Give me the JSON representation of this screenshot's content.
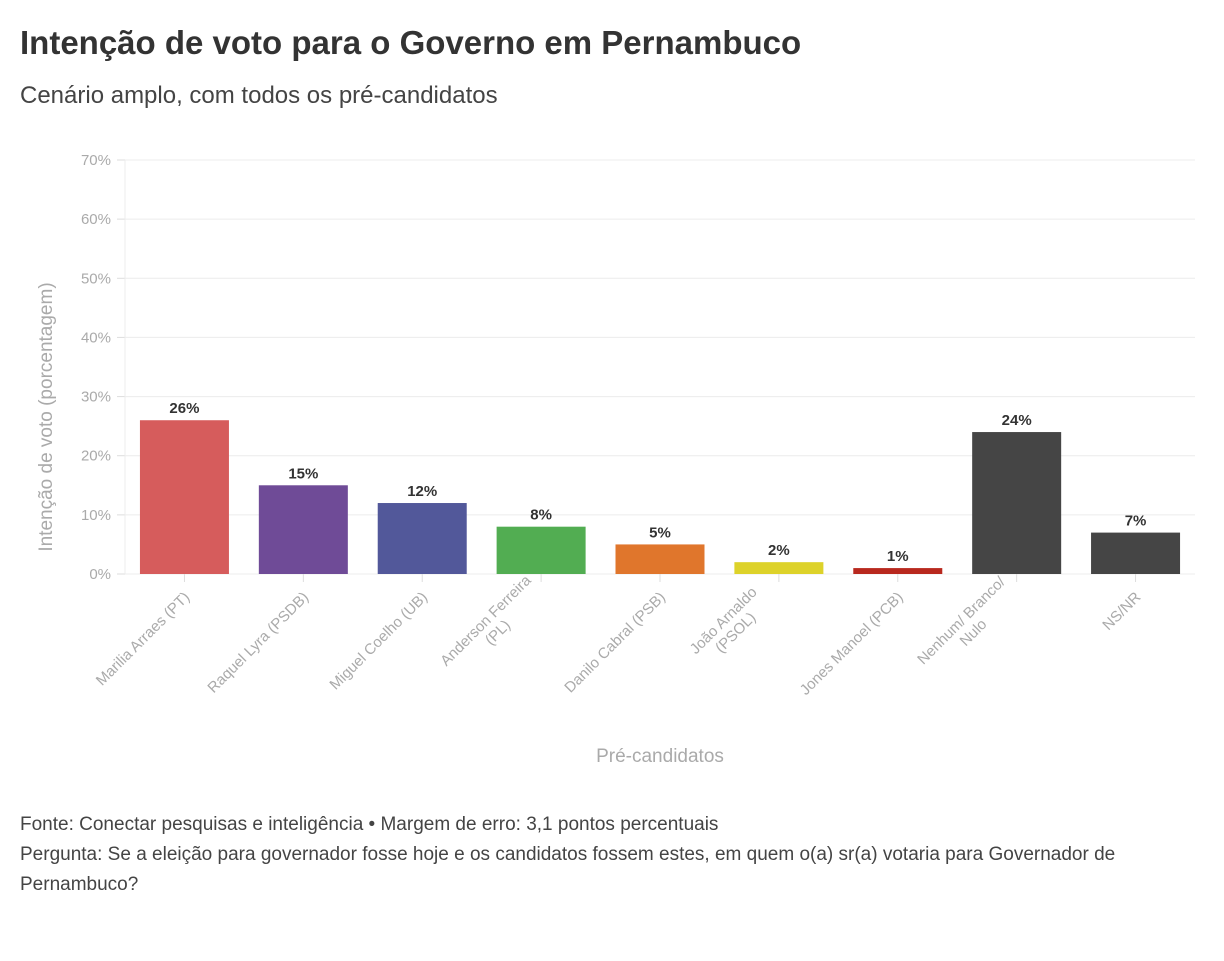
{
  "title": "Intenção de voto para o Governo em Pernambuco",
  "subtitle": "Cenário amplo, com todos os pré-candidatos",
  "footer": {
    "source": "Fonte: Conectar pesquisas e inteligência • Margem de erro: 3,1 pontos percentuais",
    "question": "Pergunta: Se a eleição para governador fosse hoje e os candidatos fossem estes, em quem o(a) sr(a) votaria para Governador de Pernambuco?"
  },
  "chart_data": {
    "type": "bar",
    "xlabel": "Pré-candidatos",
    "ylabel": "Intenção de voto (porcentagem)",
    "ylim": [
      0,
      70
    ],
    "yticks": [
      "0%",
      "10%",
      "20%",
      "30%",
      "40%",
      "50%",
      "60%",
      "70%"
    ],
    "grid": true,
    "categories": [
      "Marilia Arraes (PT)",
      "Raquel Lyra (PSDB)",
      "Miguel Coelho (UB)",
      "Anderson Ferreira\n(PL)",
      "Danilo Cabral (PSB)",
      "João Arnaldo\n(PSOL)",
      "Jones Manoel (PCB)",
      "Nenhum/ Branco/\nNulo",
      "NS/NR"
    ],
    "values": [
      26,
      15,
      12,
      8,
      5,
      2,
      1,
      24,
      7
    ],
    "data_labels": [
      "26%",
      "15%",
      "12%",
      "8%",
      "5%",
      "2%",
      "1%",
      "24%",
      "7%"
    ],
    "colors": [
      "#d65c5c",
      "#6f4b97",
      "#52589a",
      "#52ad52",
      "#e0762c",
      "#ddd22a",
      "#b8281e",
      "#454545",
      "#454545"
    ]
  }
}
